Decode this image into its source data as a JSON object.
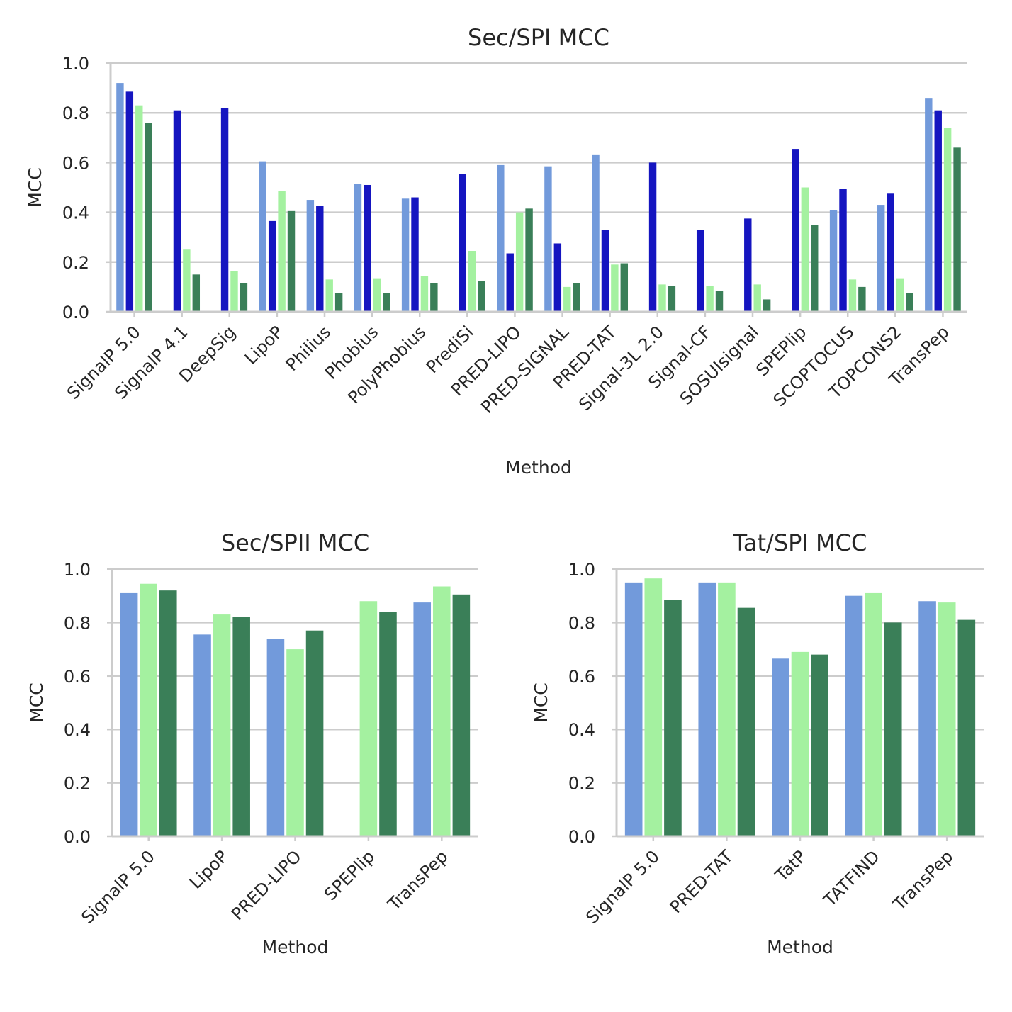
{
  "colors": {
    "light_blue": "#729ADB",
    "dark_blue": "#1515C0",
    "light_green": "#A4F1A0",
    "dark_green": "#3A7F58",
    "grid": "#CCCCCC",
    "text": "#262626"
  },
  "chart_data": [
    {
      "type": "bar",
      "title": "Sec/SPI MCC",
      "xlabel": "Method",
      "ylabel": "MCC",
      "ylim": [
        0,
        1.0
      ],
      "yticks": [
        "0.0",
        "0.2",
        "0.4",
        "0.6",
        "0.8",
        "1.0"
      ],
      "grid": true,
      "legend": "none",
      "categories": [
        "SignalP 5.0",
        "SignalP 4.1",
        "DeepSig",
        "LipoP",
        "Philius",
        "Phobius",
        "PolyPhobius",
        "PrediSi",
        "PRED-LIPO",
        "PRED-SIGNAL",
        "PRED-TAT",
        "Signal-3L 2.0",
        "Signal-CF",
        "SOSUIsignal",
        "SPEPlip",
        "SCOPTOCUS",
        "TOPCONS2",
        "TransPep"
      ],
      "series": [
        {
          "color": "#729ADB",
          "values": [
            0.92,
            null,
            null,
            0.605,
            0.45,
            0.515,
            0.455,
            null,
            0.59,
            0.585,
            0.63,
            null,
            null,
            null,
            null,
            0.41,
            0.43,
            0.86
          ]
        },
        {
          "color": "#1515C0",
          "values": [
            0.885,
            0.81,
            0.82,
            0.365,
            0.425,
            0.51,
            0.46,
            0.555,
            0.235,
            0.275,
            0.33,
            0.6,
            0.33,
            0.375,
            0.655,
            0.495,
            0.475,
            0.81
          ]
        },
        {
          "color": "#A4F1A0",
          "values": [
            0.83,
            0.25,
            0.165,
            0.485,
            0.13,
            0.135,
            0.145,
            0.245,
            0.4,
            0.1,
            0.19,
            0.11,
            0.105,
            0.11,
            0.5,
            0.13,
            0.135,
            0.74
          ]
        },
        {
          "color": "#3A7F58",
          "values": [
            0.76,
            0.15,
            0.115,
            0.405,
            0.075,
            0.075,
            0.115,
            0.125,
            0.415,
            0.115,
            0.195,
            0.105,
            0.085,
            0.05,
            0.35,
            0.1,
            0.075,
            0.66
          ]
        }
      ]
    },
    {
      "type": "bar",
      "title": "Sec/SPII MCC",
      "xlabel": "Method",
      "ylabel": "MCC",
      "ylim": [
        0,
        1.0
      ],
      "yticks": [
        "0.0",
        "0.2",
        "0.4",
        "0.6",
        "0.8",
        "1.0"
      ],
      "grid": true,
      "legend": "none",
      "categories": [
        "SignalP 5.0",
        "LipoP",
        "PRED-LIPO",
        "SPEPlip",
        "TransPep"
      ],
      "series": [
        {
          "color": "#729ADB",
          "values": [
            0.91,
            0.755,
            0.74,
            null,
            0.875
          ]
        },
        {
          "color": "#A4F1A0",
          "values": [
            0.945,
            0.83,
            0.7,
            0.88,
            0.935
          ]
        },
        {
          "color": "#3A7F58",
          "values": [
            0.92,
            0.82,
            0.77,
            0.84,
            0.905
          ]
        }
      ]
    },
    {
      "type": "bar",
      "title": "Tat/SPI MCC",
      "xlabel": "Method",
      "ylabel": "MCC",
      "ylim": [
        0,
        1.0
      ],
      "yticks": [
        "0.0",
        "0.2",
        "0.4",
        "0.6",
        "0.8",
        "1.0"
      ],
      "grid": true,
      "legend": "none",
      "categories": [
        "SignalP 5.0",
        "PRED-TAT",
        "TatP",
        "TATFIND",
        "TransPep"
      ],
      "series": [
        {
          "color": "#729ADB",
          "values": [
            0.95,
            0.95,
            0.665,
            0.9,
            0.88
          ]
        },
        {
          "color": "#A4F1A0",
          "values": [
            0.965,
            0.95,
            0.69,
            0.91,
            0.875
          ]
        },
        {
          "color": "#3A7F58",
          "values": [
            0.885,
            0.855,
            0.68,
            0.8,
            0.81
          ]
        }
      ]
    }
  ]
}
